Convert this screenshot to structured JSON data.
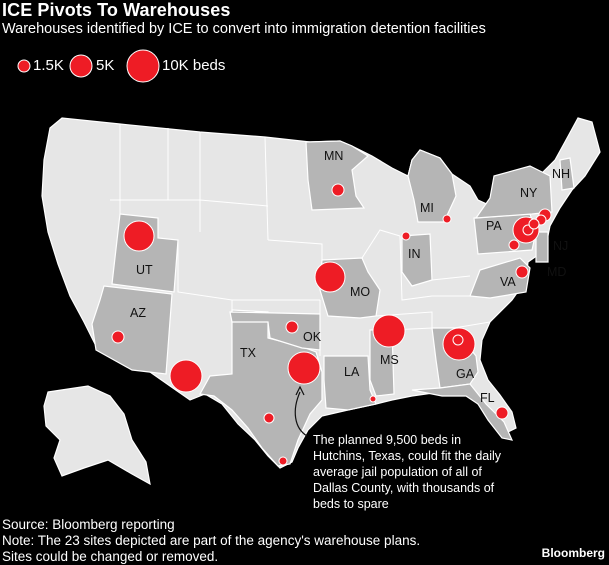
{
  "header": {
    "title": "ICE Pivots To Warehouses",
    "subtitle": "Warehouses identified by ICE to convert into immigration detention facilities"
  },
  "legend": {
    "items": [
      {
        "label": "1.5K",
        "beds": 1500
      },
      {
        "label": "5K",
        "beds": 5000
      },
      {
        "label": "10K beds",
        "beds": 10000
      }
    ]
  },
  "colors": {
    "background": "#000000",
    "land": "#e6e6e6",
    "highlight_state": "#b5b5b5",
    "border": "#ffffff",
    "site": "#ee1c25"
  },
  "map": {
    "state_labels": [
      "MN",
      "MI",
      "NY",
      "NH",
      "PA",
      "NJ",
      "MD",
      "VA",
      "UT",
      "IN",
      "MO",
      "AZ",
      "OK",
      "TX",
      "MS",
      "LA",
      "GA",
      "FL"
    ]
  },
  "annotation": {
    "text": "The planned 9,500 beds in Hutchins, Texas, could fit the daily average jail population of all of Dallas County, with thousands of beds to spare"
  },
  "footer": {
    "source": "Source: Bloomberg reporting",
    "note_line1": "Note: The 23 sites depicted are part of the agency's warehouse plans.",
    "note_line2": "Sites could be changed or removed."
  },
  "brand": "Bloomberg"
}
